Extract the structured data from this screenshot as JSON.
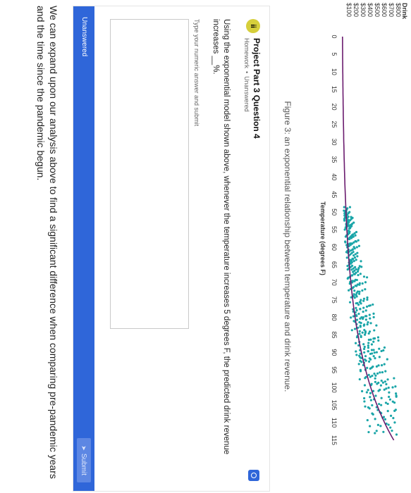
{
  "figure": {
    "caption": "Figure 3: an exponential relationship between temperature and drink revenue."
  },
  "chart_data": {
    "type": "scatter",
    "title": "Drink",
    "xlabel": "Temperature (degrees F)",
    "ylabel": "",
    "x_ticks": [
      0,
      5,
      10,
      15,
      20,
      25,
      30,
      35,
      40,
      45,
      50,
      55,
      60,
      65,
      70,
      75,
      80,
      85,
      90,
      95,
      100,
      105,
      110,
      115
    ],
    "y_ticks": [
      "$100",
      "$200",
      "$300",
      "$400",
      "$500",
      "$600",
      "$700",
      "$800"
    ],
    "xlim": [
      0,
      115
    ],
    "ylim": [
      0,
      800
    ],
    "grid": false,
    "colors": {
      "points": "#1aa5a8",
      "curve": "#6a1b6e"
    },
    "curve": {
      "type": "exponential",
      "a": 8.2,
      "b": 0.0391
    },
    "x": [
      50,
      50,
      51,
      52,
      52,
      53,
      53,
      54,
      55,
      55,
      56,
      57,
      57,
      58,
      59,
      60,
      60,
      61,
      62,
      63,
      64,
      65,
      65,
      66,
      67,
      68,
      69,
      70,
      70,
      71,
      72,
      73,
      74,
      75,
      76,
      77,
      78,
      79,
      80,
      80,
      81,
      82,
      83,
      84,
      85,
      86,
      87,
      88,
      89,
      90,
      90,
      91,
      92,
      93,
      94,
      95,
      96,
      97,
      98,
      99,
      100,
      101,
      102,
      103,
      104,
      105,
      106,
      107,
      108,
      110,
      111,
      112,
      113
    ],
    "y": [
      60,
      95,
      45,
      110,
      70,
      130,
      55,
      100,
      150,
      75,
      120,
      85,
      170,
      105,
      140,
      90,
      190,
      125,
      160,
      115,
      210,
      145,
      180,
      130,
      230,
      165,
      205,
      150,
      260,
      185,
      240,
      175,
      280,
      210,
      320,
      250,
      295,
      230,
      350,
      270,
      330,
      300,
      380,
      260,
      400,
      340,
      310,
      430,
      360,
      470,
      330,
      410,
      390,
      500,
      440,
      480,
      420,
      540,
      460,
      590,
      520,
      560,
      500,
      640,
      600,
      580,
      680,
      620,
      700,
      660,
      720,
      690,
      740
    ]
  },
  "card": {
    "badge": "ii",
    "title": "Project Part 3 Question 4",
    "meta_type": "Homework",
    "meta_separator": "•",
    "meta_status": "Unanswered",
    "question": "Using the exponential model shown above, whenever the temperature increases 5 degrees F, the predicted drink revenue increases __%.",
    "answer_hint": "Type your numeric answer and submit",
    "answer_value": "",
    "status_label": "Unanswered",
    "submit_label": "Submit"
  },
  "body": {
    "paragraph": "We can expand upon our analysis above to find a significant difference when comparing pre-pandemic years and the time since the pandemic begun."
  }
}
